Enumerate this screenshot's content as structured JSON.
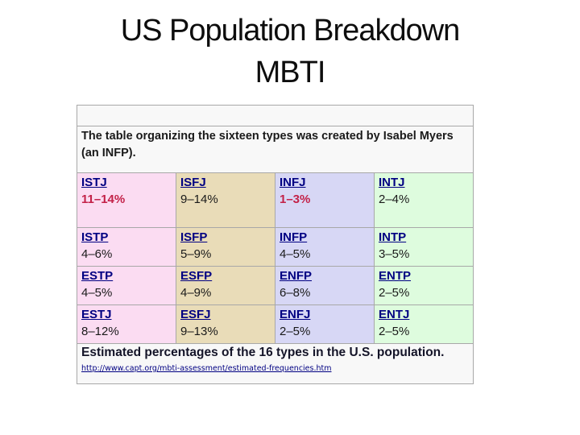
{
  "slide": {
    "title_line1": "US Population Breakdown",
    "title_line2": "MBTI"
  },
  "table": {
    "description": "The table organizing the sixteen types was created by Isabel Myers (an INFP).",
    "caption": "Estimated percentages of the 16 types in the U.S. population.",
    "source_url": "http://www.capt.org/mbti-assessment/estimated-frequencies.htm",
    "rows": [
      [
        {
          "type": "ISTJ",
          "pct": "11–14%",
          "highlight": true
        },
        {
          "type": "ISFJ",
          "pct": "9–14%",
          "highlight": false
        },
        {
          "type": "INFJ",
          "pct": "1–3%",
          "highlight": true
        },
        {
          "type": "INTJ",
          "pct": "2–4%",
          "highlight": false
        }
      ],
      [
        {
          "type": "ISTP",
          "pct": "4–6%",
          "highlight": false
        },
        {
          "type": "ISFP",
          "pct": "5–9%",
          "highlight": false
        },
        {
          "type": "INFP",
          "pct": "4–5%",
          "highlight": false
        },
        {
          "type": "INTP",
          "pct": "3–5%",
          "highlight": false
        }
      ],
      [
        {
          "type": "ESTP",
          "pct": "4–5%",
          "highlight": false
        },
        {
          "type": "ESFP",
          "pct": "4–9%",
          "highlight": false
        },
        {
          "type": "ENFP",
          "pct": "6–8%",
          "highlight": false
        },
        {
          "type": "ENTP",
          "pct": "2–5%",
          "highlight": false
        }
      ],
      [
        {
          "type": "ESTJ",
          "pct": "8–12%",
          "highlight": false
        },
        {
          "type": "ESFJ",
          "pct": "9–13%",
          "highlight": false
        },
        {
          "type": "ENFJ",
          "pct": "2–5%",
          "highlight": false
        },
        {
          "type": "ENTJ",
          "pct": "2–5%",
          "highlight": false
        }
      ]
    ]
  },
  "colors": {
    "column_pink": "#fbdcf2",
    "column_tan": "#e9dcb8",
    "column_lavender": "#d7d7f5",
    "column_green": "#defcde",
    "row_gray": "#f8f8f8",
    "border_gray": "#a8a8a8",
    "link_navy": "#000082",
    "highlight_red": "#c32148"
  }
}
